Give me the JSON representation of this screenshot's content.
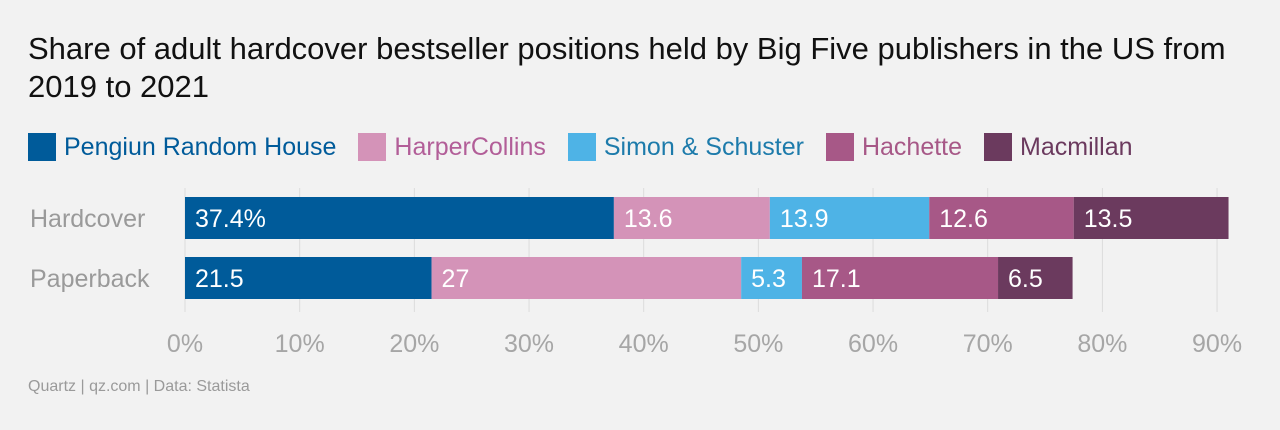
{
  "header": {
    "title": "Share of adult hardcover bestseller positions held by Big Five publishers in the US from 2019 to 2021"
  },
  "footer": {
    "source": "Quartz | qz.com | Data: Statista"
  },
  "chart_data": {
    "type": "bar",
    "orientation": "horizontal",
    "stacked": true,
    "categories": [
      "Hardcover",
      "Paperback"
    ],
    "xlim": [
      0,
      92
    ],
    "x_ticks": [
      0,
      10,
      20,
      30,
      40,
      50,
      60,
      70,
      80,
      90
    ],
    "x_tick_labels": [
      "0%",
      "10%",
      "20%",
      "30%",
      "40%",
      "50%",
      "60%",
      "70%",
      "80%",
      "90%"
    ],
    "grid": "vertical",
    "legend_position": "top-left",
    "series": [
      {
        "name": "Pengiun Random House",
        "color": "#005b9a",
        "legend_text_color": "#005b9a",
        "values": [
          37.4,
          21.5
        ],
        "data_labels": [
          "37.4%",
          "21.5"
        ]
      },
      {
        "name": "HarperCollins",
        "color": "#d493b8",
        "legend_text_color": "#b25e98",
        "values": [
          13.6,
          27
        ],
        "data_labels": [
          "13.6",
          "27"
        ]
      },
      {
        "name": "Simon & Schuster",
        "color": "#4eb3e6",
        "legend_text_color": "#1d7bab",
        "values": [
          13.9,
          5.3
        ],
        "data_labels": [
          "13.9",
          "5.3"
        ]
      },
      {
        "name": "Hachette",
        "color": "#a75887",
        "legend_text_color": "#a75887",
        "values": [
          12.6,
          17.1
        ],
        "data_labels": [
          "12.6",
          "17.1"
        ]
      },
      {
        "name": "Macmillan",
        "color": "#6b3a5e",
        "legend_text_color": "#6b3a5e",
        "values": [
          13.5,
          6.5
        ],
        "data_labels": [
          "13.5",
          "6.5"
        ]
      }
    ]
  }
}
